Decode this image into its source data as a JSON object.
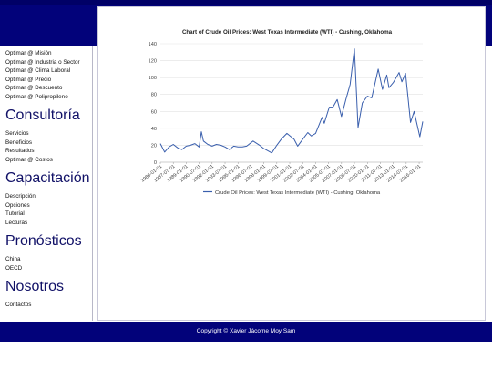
{
  "sidebar": {
    "top_links": [
      "Optimar @ Misión",
      "Optimar @ Industria o Sector",
      "Optimar @ Clima Laboral",
      "Optimar @ Precio",
      "Optimar @ Descuento",
      "Optimar @ Polipropileno"
    ],
    "sections": [
      {
        "title": "Consultoría",
        "links": [
          "Servicios",
          "Beneficios",
          "Resultados",
          "Optimar @ Costos"
        ]
      },
      {
        "title": "Capacitación",
        "links": [
          "Descripción",
          "Opciones",
          "Tutorial",
          "Lecturas"
        ]
      },
      {
        "title": "Pronósticos",
        "links": [
          "China",
          "OECD"
        ]
      },
      {
        "title": "Nosotros",
        "links": [
          "Contactos"
        ]
      }
    ]
  },
  "footer": {
    "text": "Copyright © Xavier Jácome Moy Sam"
  },
  "colors": {
    "header": "#02027a",
    "line": "#3a5fad",
    "heading": "#111167"
  },
  "chart_data": {
    "type": "line",
    "title": "Chart of Crude Oil Prices: West Texas Intermediate (WTI) - Cushing, Oklahoma",
    "xlabel": "",
    "ylabel": "",
    "ylim": [
      0,
      140
    ],
    "yticks": [
      0,
      20,
      40,
      60,
      80,
      100,
      120,
      140
    ],
    "xtick_labels": [
      "1986-01-01",
      "1987-07-01",
      "1989-01-01",
      "1990-07-01",
      "1992-01-01",
      "1993-07-01",
      "1995-01-01",
      "1996-07-01",
      "1998-01-01",
      "1999-07-01",
      "2001-01-01",
      "2002-07-01",
      "2004-01-01",
      "2005-07-01",
      "2007-01-01",
      "2008-07-01",
      "2010-01-01",
      "2011-07-01",
      "2013-01-01",
      "2014-07-01",
      "2016-01-01"
    ],
    "grid": true,
    "legend_position": "bottom",
    "series": [
      {
        "name": "Crude Oil Prices: West Texas Intermediate (WTI) - Cushing, Oklahoma",
        "x": [
          "1986-01",
          "1986-07",
          "1987-01",
          "1987-07",
          "1988-01",
          "1988-07",
          "1989-01",
          "1989-07",
          "1990-01",
          "1990-07",
          "1990-10",
          "1991-01",
          "1991-07",
          "1992-01",
          "1992-07",
          "1993-01",
          "1993-07",
          "1994-01",
          "1994-07",
          "1995-01",
          "1995-07",
          "1996-01",
          "1996-10",
          "1997-07",
          "1998-01",
          "1998-12",
          "1999-07",
          "2000-01",
          "2000-09",
          "2001-07",
          "2001-12",
          "2002-07",
          "2003-02",
          "2003-07",
          "2004-01",
          "2004-10",
          "2005-01",
          "2005-08",
          "2006-01",
          "2006-07",
          "2007-01",
          "2007-07",
          "2008-01",
          "2008-07",
          "2008-12",
          "2009-06",
          "2010-01",
          "2010-07",
          "2011-04",
          "2011-10",
          "2012-04",
          "2012-07",
          "2013-01",
          "2013-09",
          "2014-01",
          "2014-06",
          "2015-01",
          "2015-06",
          "2016-02",
          "2016-06"
        ],
        "values": [
          22,
          12,
          18,
          21,
          17,
          15,
          19,
          20,
          22,
          18,
          36,
          25,
          21,
          19,
          21,
          20,
          18,
          15,
          19,
          18,
          18,
          19,
          25,
          20,
          16,
          11,
          20,
          27,
          34,
          27,
          19,
          27,
          35,
          31,
          34,
          53,
          46,
          65,
          65,
          74,
          54,
          74,
          92,
          134,
          41,
          70,
          78,
          76,
          110,
          86,
          103,
          88,
          94,
          106,
          95,
          105,
          47,
          60,
          30,
          48
        ]
      }
    ]
  }
}
